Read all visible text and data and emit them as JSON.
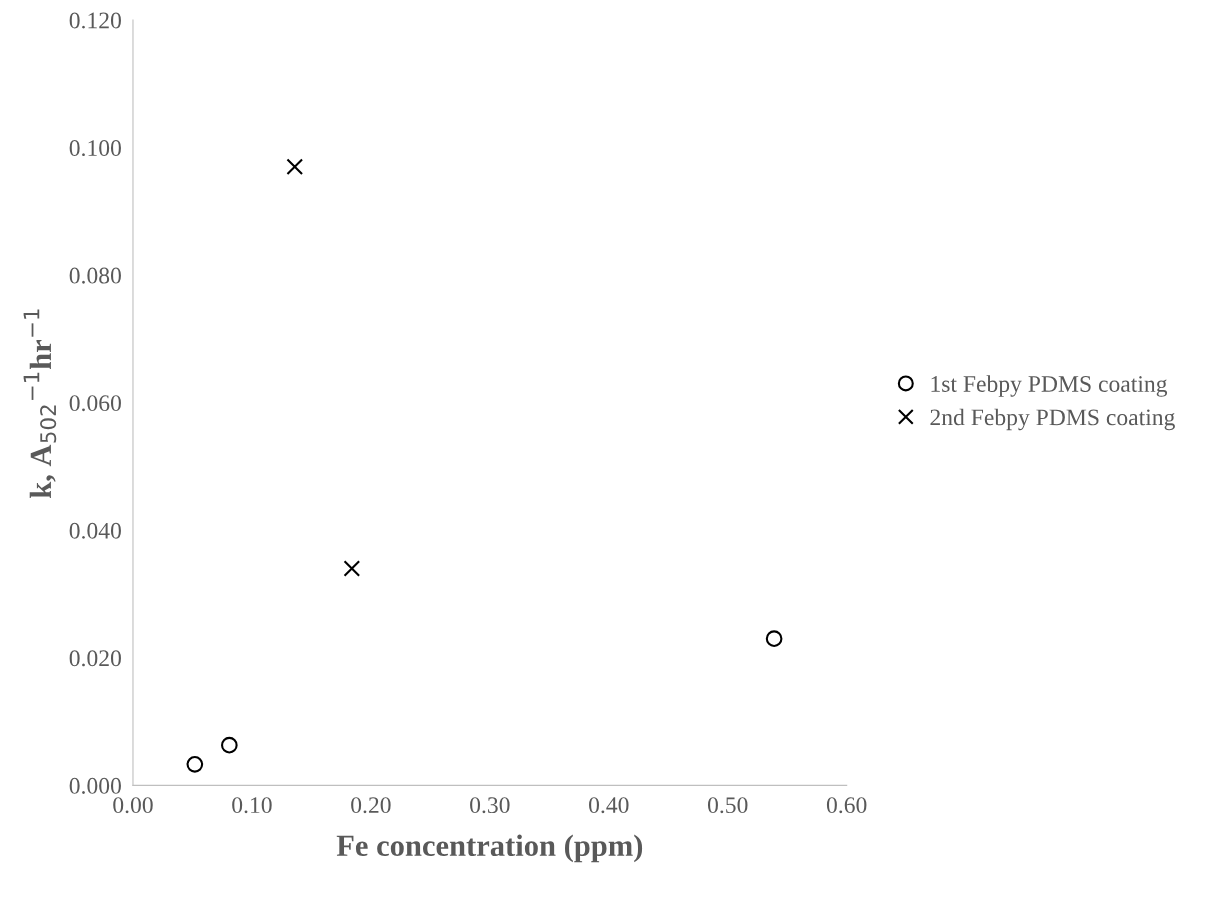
{
  "chart_data": {
    "type": "scatter",
    "xlabel": "Fe concentration (ppm)",
    "ylabel": "k, A$_{502}$$^{−1}$hr$^{−1}$",
    "xlim": [
      0,
      0.6
    ],
    "xticks": [
      {
        "value": 0,
        "label": "0.00"
      },
      {
        "value": 0.1,
        "label": "0.10"
      },
      {
        "value": 0.2,
        "label": "0.20"
      },
      {
        "value": 0.3,
        "label": "0.30"
      },
      {
        "value": 0.4,
        "label": "0.40"
      },
      {
        "value": 0.5,
        "label": "0.50"
      },
      {
        "value": 0.6,
        "label": "0.60"
      }
    ],
    "ylim": [
      0,
      0.12
    ],
    "yticks": [
      {
        "value": 0,
        "label": "0.000"
      },
      {
        "value": 0.02,
        "label": "0.020"
      },
      {
        "value": 0.04,
        "label": "0.040"
      },
      {
        "value": 0.06,
        "label": "0.060"
      },
      {
        "value": 0.08,
        "label": "0.080"
      },
      {
        "value": 0.1,
        "label": "0.100"
      },
      {
        "value": 0.12,
        "label": "0.120"
      }
    ],
    "grid": false,
    "legend": "right",
    "series": [
      {
        "name": "1st Febpy PDMS coating",
        "color": "#000000",
        "marker": "circle",
        "x": [
          0.052,
          0.081,
          0.539
        ],
        "values": [
          0.0033,
          0.0063,
          0.023
        ]
      },
      {
        "name": "2nd Febpy PDMS coating",
        "color": "#000000",
        "marker": "cross",
        "x": [
          0.136,
          0.184
        ],
        "values": [
          0.097,
          0.034
        ]
      }
    ]
  }
}
